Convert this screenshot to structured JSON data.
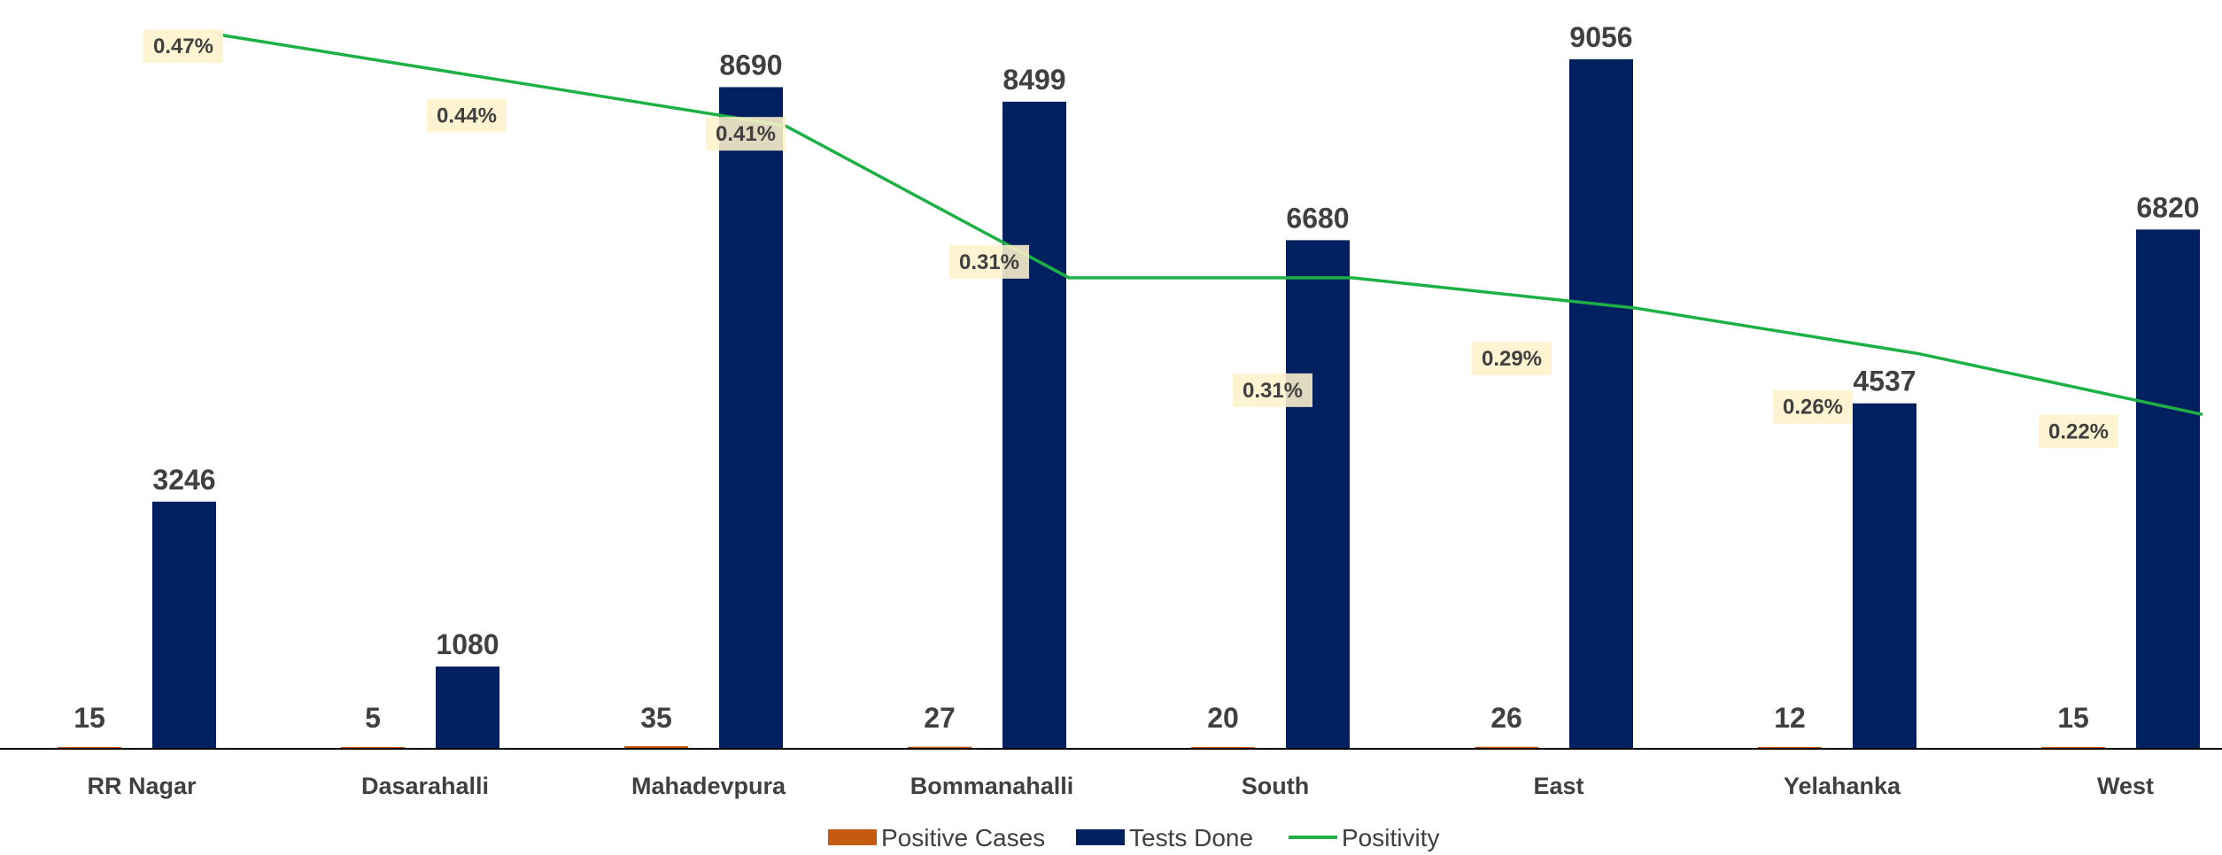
{
  "chart_data": {
    "type": "bar",
    "categories": [
      "RR Nagar",
      "Dasarahalli",
      "Mahadevpura",
      "Bommanahalli",
      "South",
      "East",
      "Yelahanka",
      "West"
    ],
    "series": [
      {
        "name": "Positive Cases",
        "kind": "bar",
        "color": "#C55A11",
        "values": [
          15,
          5,
          35,
          27,
          20,
          26,
          12,
          15
        ],
        "labels": [
          "15",
          "5",
          "35",
          "27",
          "20",
          "26",
          "12",
          "15"
        ]
      },
      {
        "name": "Tests Done",
        "kind": "bar",
        "color": "#002060",
        "values": [
          3246,
          1080,
          8690,
          8499,
          6680,
          9056,
          4537,
          6820
        ],
        "labels": [
          "3246",
          "1080",
          "8690",
          "8499",
          "6680",
          "9056",
          "4537",
          "6820"
        ]
      },
      {
        "name": "Positivity",
        "kind": "line",
        "color": "#1DB045",
        "values": [
          0.47,
          0.44,
          0.41,
          0.31,
          0.31,
          0.29,
          0.26,
          0.22
        ],
        "labels": [
          "0.47%",
          "0.44%",
          "0.41%",
          "0.31%",
          "0.31%",
          "0.29%",
          "0.26%",
          "0.22%"
        ]
      }
    ],
    "legend": {
      "position": "bottom"
    },
    "grid": false,
    "ylim": [
      0,
      9300
    ],
    "y2lim": [
      0,
      0.48
    ]
  }
}
